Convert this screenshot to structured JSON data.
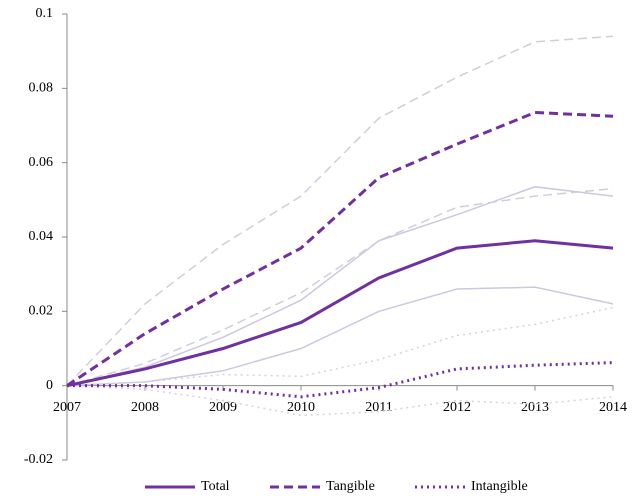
{
  "chart_data": {
    "type": "line",
    "x": [
      2007,
      2008,
      2009,
      2010,
      2011,
      2012,
      2013,
      2014
    ],
    "xlim": [
      2007,
      2014
    ],
    "xticks": [
      2007,
      2008,
      2009,
      2010,
      2011,
      2012,
      2013,
      2014
    ],
    "ylim": [
      -0.02,
      0.1
    ],
    "yticks": [
      -0.02,
      0,
      0.02,
      0.04,
      0.06,
      0.08,
      0.1
    ],
    "legend": "bottom",
    "series": [
      {
        "color": "#cfc6e2",
        "dash": "solid",
        "values": [
          0,
          0.005,
          0.013,
          0.023,
          0.039,
          0.046,
          0.0535,
          0.051
        ]
      },
      {
        "color": "#cfc6e2",
        "dash": "solid",
        "values": [
          0,
          0.001,
          0.004,
          0.01,
          0.02,
          0.026,
          0.0265,
          0.022
        ]
      },
      {
        "color": "#cfcfdc",
        "dash": "dashed",
        "values": [
          0,
          0.022,
          0.038,
          0.051,
          0.072,
          0.083,
          0.0925,
          0.094
        ]
      },
      {
        "color": "#cfcfdc",
        "dash": "dashed",
        "values": [
          0,
          0.006,
          0.015,
          0.025,
          0.039,
          0.048,
          0.051,
          0.053
        ]
      },
      {
        "color": "#d6d0e4",
        "dash": "dotted",
        "values": [
          0,
          0.001,
          0.003,
          0.0025,
          0.007,
          0.0135,
          0.0165,
          0.021
        ]
      },
      {
        "color": "#d6d0e4",
        "dash": "dotted",
        "values": [
          0,
          -0.001,
          -0.004,
          -0.008,
          -0.007,
          -0.004,
          -0.005,
          -0.003
        ]
      },
      {
        "name": "Total",
        "color": "#7030a0",
        "dash": "solid",
        "values": [
          0,
          0.0045,
          0.01,
          0.017,
          0.029,
          0.037,
          0.039,
          0.037
        ]
      },
      {
        "name": "Tangible",
        "color": "#7030a0",
        "dash": "dashed",
        "values": [
          0,
          0.014,
          0.026,
          0.037,
          0.056,
          0.065,
          0.0735,
          0.0725
        ]
      },
      {
        "name": "Intangible",
        "color": "#7030a0",
        "dash": "dotted",
        "values": [
          0,
          0,
          -0.001,
          -0.003,
          -0.0005,
          0.0045,
          0.0055,
          0.0062
        ]
      }
    ]
  }
}
